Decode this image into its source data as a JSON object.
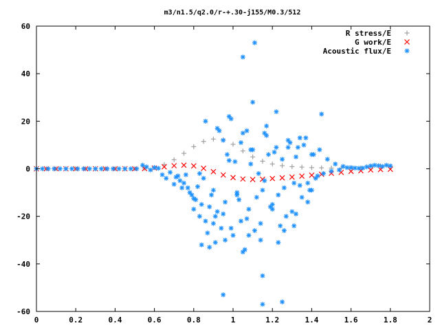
{
  "chart_data": {
    "type": "scatter",
    "title": "m3/n1.5/q2.0/r-+.30-j155/M0.3/512",
    "xlabel": "",
    "ylabel": "",
    "xlim": [
      0,
      2
    ],
    "ylim": [
      -60,
      60
    ],
    "xticks": [
      0,
      0.2,
      0.4,
      0.6,
      0.8,
      1,
      1.2,
      1.4,
      1.6,
      1.8,
      2
    ],
    "xtick_labels": [
      "0",
      "0.2",
      "0.4",
      "0.6",
      "0.8",
      "1",
      "1.2",
      "1.4",
      "1.6",
      "1.8",
      "2"
    ],
    "yticks": [
      -60,
      -40,
      -20,
      0,
      20,
      40,
      60
    ],
    "ytick_labels": [
      "-60",
      "-40",
      "-20",
      "0",
      "20",
      "40",
      "60"
    ],
    "grid": false,
    "legend_position": "top-right",
    "series": [
      {
        "name": "R stress/E",
        "marker": "plus",
        "color": "#a0a0a0",
        "x": [
          0.0,
          0.05,
          0.1,
          0.15,
          0.2,
          0.25,
          0.3,
          0.35,
          0.4,
          0.45,
          0.5,
          0.55,
          0.6,
          0.65,
          0.7,
          0.75,
          0.8,
          0.85,
          0.9,
          0.95,
          1.0,
          1.05,
          1.1,
          1.15,
          1.2,
          1.25,
          1.3,
          1.35,
          1.4,
          1.45,
          1.5,
          1.55,
          1.6,
          1.65,
          1.7,
          1.75,
          1.8
        ],
        "y": [
          0,
          0,
          0,
          0,
          0,
          0,
          0,
          0,
          0,
          0,
          0,
          0.2,
          0.6,
          1.8,
          3.8,
          6.5,
          9.3,
          11.5,
          12.5,
          12.2,
          10.3,
          7.5,
          5.0,
          3.2,
          2.0,
          1.3,
          0.9,
          0.7,
          0.5,
          0.4,
          0.3,
          0.3,
          0.3,
          0.4,
          0.8,
          1.2,
          1.0
        ]
      },
      {
        "name": "G work/E",
        "marker": "cross",
        "color": "#ff0000",
        "x": [
          0.0,
          0.05,
          0.1,
          0.15,
          0.2,
          0.25,
          0.3,
          0.35,
          0.4,
          0.45,
          0.5,
          0.55,
          0.6,
          0.65,
          0.7,
          0.75,
          0.8,
          0.85,
          0.9,
          0.95,
          1.0,
          1.05,
          1.1,
          1.15,
          1.2,
          1.25,
          1.3,
          1.35,
          1.4,
          1.45,
          1.5,
          1.55,
          1.6,
          1.65,
          1.7,
          1.75,
          1.8
        ],
        "y": [
          0,
          0,
          0,
          0,
          0,
          0,
          0,
          0,
          0,
          0,
          0,
          0.1,
          0.3,
          0.8,
          1.3,
          1.5,
          1.2,
          0.2,
          -1.2,
          -2.6,
          -3.7,
          -4.3,
          -4.5,
          -4.4,
          -4.1,
          -3.8,
          -3.5,
          -3.1,
          -2.7,
          -2.3,
          -1.9,
          -1.5,
          -1.1,
          -0.8,
          -0.5,
          -0.3,
          -0.2
        ]
      },
      {
        "name": "Acoustic flux/E",
        "marker": "star",
        "color": "#1e90ff",
        "x": [
          0.0,
          0.03,
          0.06,
          0.09,
          0.12,
          0.15,
          0.18,
          0.21,
          0.24,
          0.27,
          0.3,
          0.33,
          0.36,
          0.39,
          0.42,
          0.45,
          0.48,
          0.51,
          0.54,
          0.56,
          0.58,
          0.6,
          0.62,
          0.64,
          0.66,
          0.68,
          0.7,
          0.72,
          0.74,
          0.76,
          0.78,
          0.8,
          0.82,
          0.84,
          0.86,
          0.88,
          0.9,
          0.92,
          0.94,
          0.96,
          0.98,
          1.0,
          1.02,
          1.04,
          1.06,
          1.08,
          1.1,
          1.12,
          1.14,
          1.16,
          1.18,
          1.2,
          1.22,
          1.24,
          1.26,
          1.28,
          1.3,
          1.32,
          1.34,
          1.36,
          1.38,
          1.4,
          1.42,
          1.44,
          1.46,
          1.48,
          1.5,
          1.52,
          1.54,
          1.56,
          1.58,
          1.6,
          1.62,
          1.64,
          1.66,
          1.68,
          1.7,
          1.72,
          1.74,
          1.76,
          1.78,
          1.8,
          0.71,
          0.75,
          0.79,
          0.83,
          0.87,
          0.91,
          0.95,
          0.99,
          1.03,
          1.07,
          1.11,
          1.15,
          1.19,
          1.23,
          1.27,
          1.31,
          1.35,
          1.39,
          1.43,
          0.73,
          0.77,
          0.81,
          0.85,
          0.89,
          0.93,
          0.97,
          1.01,
          1.05,
          1.09,
          1.13,
          1.17,
          1.21,
          1.25,
          1.29,
          1.33,
          1.37,
          1.41,
          1.45,
          0.8,
          0.86,
          0.92,
          0.98,
          1.04,
          1.1,
          1.16,
          1.22,
          1.28,
          1.34,
          1.4,
          0.84,
          0.9,
          0.96,
          1.02,
          1.08,
          1.14,
          1.2,
          1.26,
          1.32,
          1.38,
          0.88,
          0.95,
          1.05,
          1.15,
          1.25,
          1.05,
          1.11,
          1.15,
          1.07,
          0.95,
          1.09,
          0.83,
          0.91,
          0.99,
          1.17,
          1.23,
          1.31
        ],
        "y": [
          0,
          0,
          0,
          0,
          0,
          0,
          0,
          0,
          0,
          0,
          0,
          0,
          0,
          0,
          0,
          0,
          0,
          0,
          1.5,
          0.8,
          -0.5,
          0.5,
          0.2,
          -2.5,
          -4.0,
          -1.5,
          -6.5,
          -3.0,
          -8.0,
          -2.5,
          -10.0,
          -12.5,
          -7.5,
          -15.0,
          -22.0,
          -16.0,
          -9.0,
          -18.0,
          -25.0,
          -14.0,
          3.5,
          -28.0,
          -10.0,
          -22.0,
          -34.0,
          -17.0,
          8.0,
          -12.0,
          -30.0,
          -5.0,
          6.0,
          -15.0,
          9.0,
          -24.0,
          -8.0,
          12.0,
          -18.0,
          5.0,
          -7.0,
          10.0,
          -14.0,
          6.0,
          -4.0,
          8.0,
          -2.0,
          4.0,
          -1.0,
          2.0,
          -0.5,
          1.0,
          0.5,
          0.5,
          0.3,
          0.2,
          0.3,
          0.8,
          1.2,
          1.5,
          1.3,
          1.0,
          1.5,
          1.2,
          -3.5,
          -6.0,
          -11.0,
          -20.0,
          -27.0,
          -31.0,
          -19.0,
          -25.0,
          -13.0,
          -21.0,
          -26.0,
          -9.0,
          -16.0,
          -11.0,
          -20.0,
          -6.0,
          -12.0,
          -9.0,
          -3.0,
          -5.0,
          -8.0,
          -13.0,
          -4.0,
          -11.0,
          16.0,
          6.0,
          3.0,
          15.0,
          2.0,
          -2.0,
          18.0,
          7.0,
          4.0,
          11.0,
          9.0,
          13.0,
          6.0,
          23.0,
          -17.0,
          20.0,
          17.0,
          22.0,
          11.0,
          28.0,
          15.0,
          24.0,
          9.0,
          13.0,
          -9.0,
          -32.0,
          -23.0,
          -30.0,
          -11.0,
          -28.0,
          -23.0,
          -17.0,
          -26.0,
          -19.0,
          -6.0,
          -33.0,
          -53.0,
          -35.0,
          -57.0,
          -56.0,
          47.0,
          53.0,
          -45.0,
          16.0,
          12.0,
          8.0,
          -2.0,
          -20.0,
          21.0,
          14.0,
          -31.0,
          -24.0
        ]
      }
    ]
  }
}
